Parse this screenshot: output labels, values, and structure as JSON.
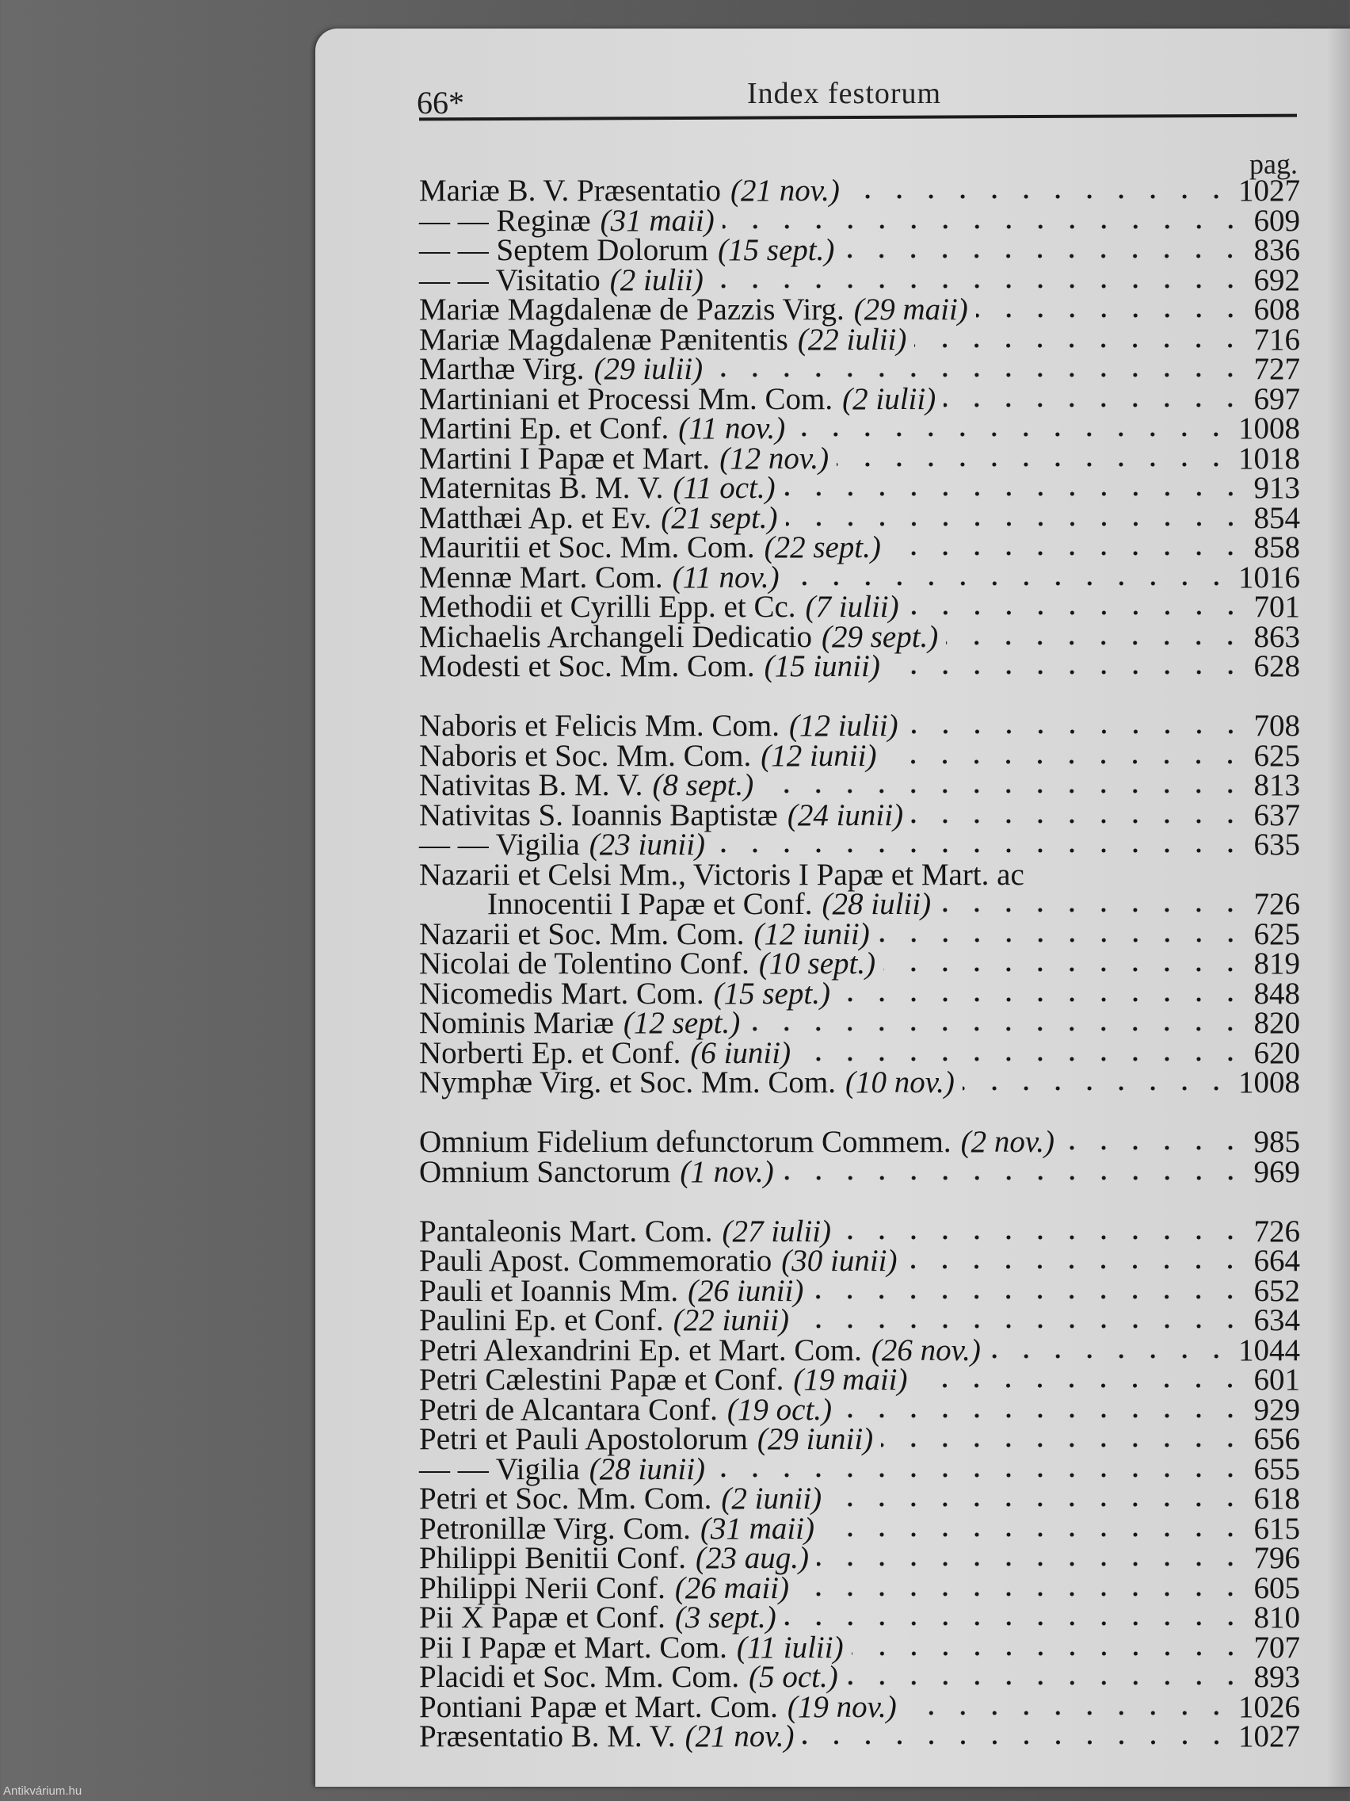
{
  "header": {
    "folio": "66*",
    "running_title": "Index festorum",
    "column_label": "pag."
  },
  "watermark": "Antikvárium.hu",
  "entries": [
    {
      "name": "Mariæ B. V. Præsentatio",
      "date": "(21 nov.)",
      "page": "1027"
    },
    {
      "name": "— — Reginæ",
      "date": "(31 maii)",
      "page": "609"
    },
    {
      "name": "— — Septem Dolorum",
      "date": "(15 sept.)",
      "page": "836"
    },
    {
      "name": "— — Visitatio",
      "date": "(2 iulii)",
      "page": "692"
    },
    {
      "name": "Mariæ Magdalenæ de Pazzis Virg.",
      "date": "(29 maii)",
      "page": "608"
    },
    {
      "name": "Mariæ Magdalenæ Pænitentis",
      "date": "(22 iulii)",
      "page": "716"
    },
    {
      "name": "Marthæ Virg.",
      "date": "(29 iulii)",
      "page": "727"
    },
    {
      "name": "Martiniani et Processi Mm. Com.",
      "date": "(2 iulii)",
      "page": "697"
    },
    {
      "name": "Martini Ep. et Conf.",
      "date": "(11 nov.)",
      "page": "1008"
    },
    {
      "name": "Martini I Papæ et Mart.",
      "date": "(12 nov.)",
      "page": "1018"
    },
    {
      "name": "Maternitas B. M. V.",
      "date": "(11 oct.)",
      "page": "913"
    },
    {
      "name": "Matthæi Ap. et Ev.",
      "date": "(21 sept.)",
      "page": "854"
    },
    {
      "name": "Mauritii et Soc. Mm. Com.",
      "date": "(22 sept.)",
      "page": "858"
    },
    {
      "name": "Mennæ Mart. Com.",
      "date": "(11 nov.)",
      "page": "1016"
    },
    {
      "name": "Methodii et Cyrilli Epp. et Cc.",
      "date": "(7 iulii)",
      "page": "701"
    },
    {
      "name": "Michaelis Archangeli Dedicatio",
      "date": "(29 sept.)",
      "page": "863"
    },
    {
      "name": "Modesti et Soc. Mm. Com.",
      "date": "(15 iunii)",
      "page": "628"
    },
    {
      "blank": true
    },
    {
      "name": "Naboris et Felicis Mm. Com.",
      "date": "(12 iulii)",
      "page": "708"
    },
    {
      "name": "Naboris et Soc. Mm. Com.",
      "date": "(12 iunii)",
      "page": "625"
    },
    {
      "name": "Nativitas B. M. V.",
      "date": "(8 sept.)",
      "page": "813"
    },
    {
      "name": "Nativitas S. Ioannis Baptistæ",
      "date": "(24 iunii)",
      "page": "637"
    },
    {
      "name": "— — Vigilia",
      "date": "(23 iunii)",
      "page": "635"
    },
    {
      "name": "Nazarii et Celsi Mm., Victoris I Papæ et Mart. ac",
      "continuation": "Innocentii I Papæ et Conf.",
      "date": "(28 iulii)",
      "page": "726"
    },
    {
      "name": "Nazarii et Soc. Mm. Com.",
      "date": "(12 iunii)",
      "page": "625"
    },
    {
      "name": "Nicolai de Tolentino Conf.",
      "date": "(10 sept.)",
      "page": "819"
    },
    {
      "name": "Nicomedis Mart. Com.",
      "date": "(15 sept.)",
      "page": "848"
    },
    {
      "name": "Nominis Mariæ",
      "date": "(12 sept.)",
      "page": "820"
    },
    {
      "name": "Norberti Ep. et Conf.",
      "date": "(6 iunii)",
      "page": "620"
    },
    {
      "name": "Nymphæ Virg. et Soc. Mm. Com.",
      "date": "(10 nov.)",
      "page": "1008"
    },
    {
      "blank": true
    },
    {
      "name": "Omnium Fidelium defunctorum Commem.",
      "date": "(2 nov.)",
      "page": "985"
    },
    {
      "name": "Omnium Sanctorum",
      "date": "(1 nov.)",
      "page": "969"
    },
    {
      "blank": true
    },
    {
      "name": "Pantaleonis Mart. Com.",
      "date": "(27 iulii)",
      "page": "726"
    },
    {
      "name": "Pauli Apost. Commemoratio",
      "date": "(30 iunii)",
      "page": "664"
    },
    {
      "name": "Pauli et Ioannis Mm.",
      "date": "(26 iunii)",
      "page": "652"
    },
    {
      "name": "Paulini Ep. et Conf.",
      "date": "(22 iunii)",
      "page": "634"
    },
    {
      "name": "Petri Alexandrini Ep. et Mart. Com.",
      "date": "(26 nov.)",
      "page": "1044"
    },
    {
      "name": "Petri Cælestini Papæ et Conf.",
      "date": "(19 maii)",
      "page": "601"
    },
    {
      "name": "Petri de Alcantara Conf.",
      "date": "(19 oct.)",
      "page": "929"
    },
    {
      "name": "Petri et Pauli Apostolorum",
      "date": "(29 iunii)",
      "page": "656"
    },
    {
      "name": "— — Vigilia",
      "date": "(28 iunii)",
      "page": "655"
    },
    {
      "name": "Petri et Soc. Mm. Com.",
      "date": "(2 iunii)",
      "page": "618"
    },
    {
      "name": "Petronillæ Virg. Com.",
      "date": "(31 maii)",
      "page": "615"
    },
    {
      "name": "Philippi Benitii Conf.",
      "date": "(23 aug.)",
      "page": "796"
    },
    {
      "name": "Philippi Nerii Conf.",
      "date": "(26 maii)",
      "page": "605"
    },
    {
      "name": "Pii X Papæ et Conf.",
      "date": "(3 sept.)",
      "page": "810"
    },
    {
      "name": "Pii I Papæ et Mart. Com.",
      "date": "(11 iulii)",
      "page": "707"
    },
    {
      "name": "Placidi et Soc. Mm. Com.",
      "date": "(5 oct.)",
      "page": "893"
    },
    {
      "name": "Pontiani Papæ et Mart. Com.",
      "date": "(19 nov.)",
      "page": "1026"
    },
    {
      "name": "Præsentatio B. M. V.",
      "date": "(21 nov.)",
      "page": "1027"
    }
  ]
}
